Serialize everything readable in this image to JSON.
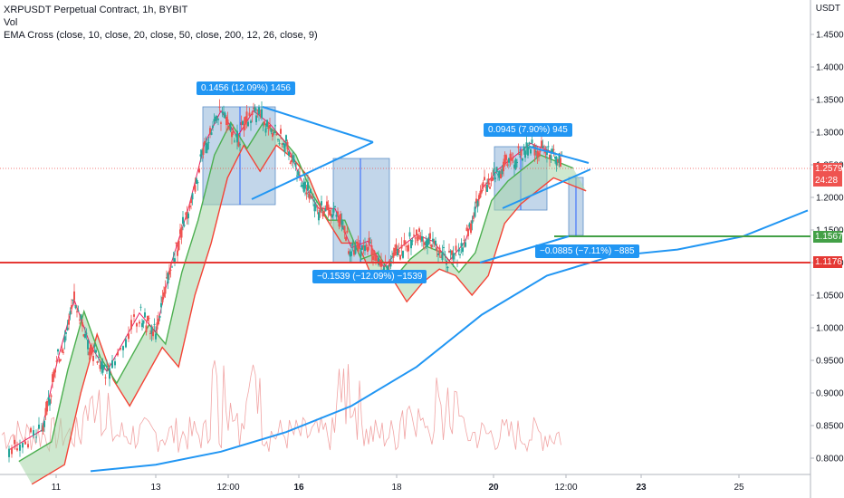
{
  "legend": {
    "symbol_line": "XRPUSDT Perpetual Contract, 1h, BYBIT",
    "vol": "Vol",
    "ema": "EMA Cross (close, 10, close, 20, close, 50, close, 200, 12, 26, close, 9)"
  },
  "currency": "USDT",
  "price_labels": {
    "last": "1.2579",
    "countdown": "24:28",
    "green_line": "1.1567",
    "red_line": "1.1176"
  },
  "measures": [
    {
      "text": "0.1456 (12.09%) 1456"
    },
    {
      "text": "−0.1539 (−12.09%) −1539"
    },
    {
      "text": "0.0945 (7.90%) 945"
    },
    {
      "text": "−0.0885 (−7.11%) −885"
    }
  ],
  "colors": {
    "up": "#26a69a",
    "down": "#ef5350",
    "ema200": "#2196f3",
    "ema_fast": "#e91e63",
    "ema_mid": "#4caf50",
    "ema_slow": "#f44336",
    "hline_red": "#e53935",
    "hline_green": "#43a047",
    "measure_fill": "#90b4d8",
    "label_blue": "#2196f3"
  },
  "chart_data": {
    "type": "candlestick",
    "y_axis": {
      "min": 0.8,
      "max": 1.5,
      "ticks": [
        0.8,
        0.85,
        0.9,
        0.95,
        1.0,
        1.05,
        1.1,
        1.15,
        1.2,
        1.25,
        1.3,
        1.35,
        1.4,
        1.45
      ]
    },
    "x_tick_labels": [
      "11",
      "13",
      "12:00",
      "16",
      "18",
      "20",
      "12:00",
      "23",
      "25"
    ],
    "ema200": [
      [
        0,
        0.78
      ],
      [
        2,
        0.79
      ],
      [
        4,
        0.81
      ],
      [
        6,
        0.84
      ],
      [
        8,
        0.88
      ],
      [
        10,
        0.94
      ],
      [
        12,
        1.02
      ],
      [
        14,
        1.08
      ],
      [
        16,
        1.11
      ],
      [
        18,
        1.12
      ],
      [
        20,
        1.14
      ],
      [
        22,
        1.18
      ]
    ],
    "price_path": [
      [
        0,
        0.81
      ],
      [
        1,
        0.84
      ],
      [
        1.5,
        0.95
      ],
      [
        2,
        1.04
      ],
      [
        2.5,
        0.97
      ],
      [
        3,
        0.93
      ],
      [
        4,
        1.02
      ],
      [
        4.5,
        0.99
      ],
      [
        5,
        1.1
      ],
      [
        5.5,
        1.18
      ],
      [
        6,
        1.28
      ],
      [
        6.5,
        1.33
      ],
      [
        7,
        1.29
      ],
      [
        7.5,
        1.33
      ],
      [
        8,
        1.31
      ],
      [
        8.5,
        1.28
      ],
      [
        9,
        1.22
      ],
      [
        9.5,
        1.18
      ],
      [
        10,
        1.18
      ],
      [
        10.5,
        1.12
      ],
      [
        11,
        1.13
      ],
      [
        11.5,
        1.09
      ],
      [
        12,
        1.12
      ],
      [
        12.5,
        1.14
      ],
      [
        13,
        1.13
      ],
      [
        13.5,
        1.1
      ],
      [
        14,
        1.13
      ],
      [
        14.5,
        1.21
      ],
      [
        15,
        1.24
      ],
      [
        15.5,
        1.26
      ],
      [
        16,
        1.28
      ],
      [
        16.5,
        1.27
      ],
      [
        17,
        1.26
      ]
    ],
    "horizontal_levels": [
      1.1567,
      1.1176
    ]
  }
}
